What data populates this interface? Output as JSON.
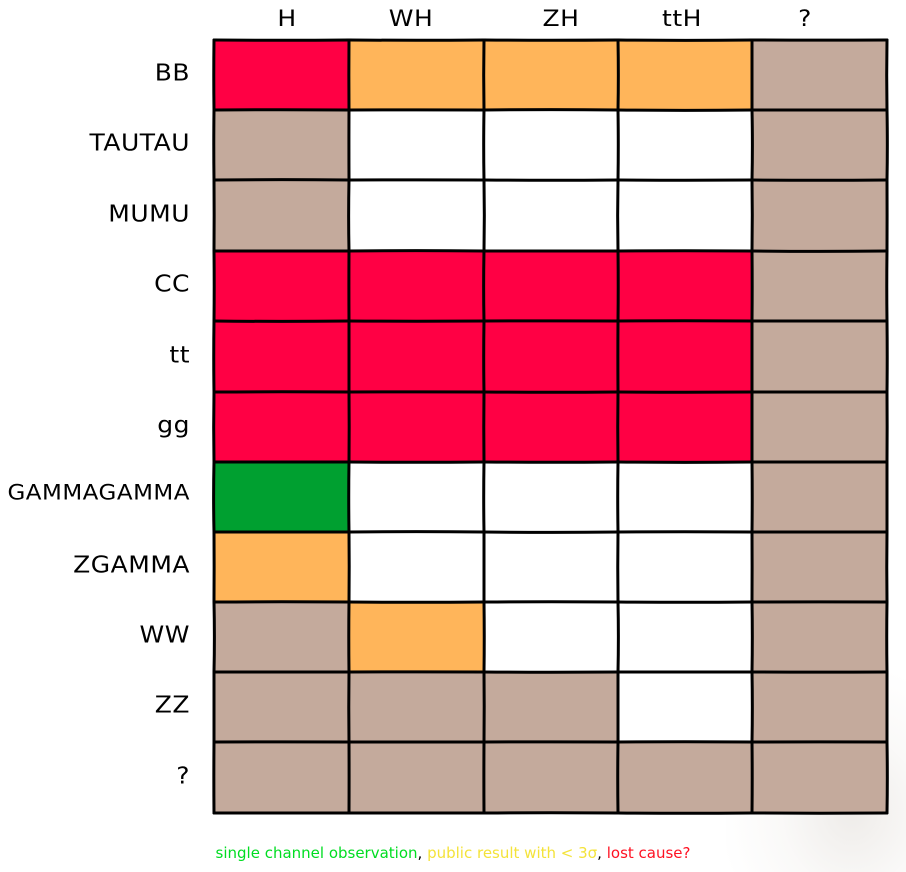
{
  "chart_data": {
    "type": "heatmap",
    "columns": [
      "H",
      "WH",
      "ZH",
      "ttH",
      "?"
    ],
    "rows": [
      "BB",
      "TAUTAU",
      "MUMU",
      "CC",
      "tt",
      "gg",
      "GAMMAGAMMA",
      "ZGAMMA",
      "WW",
      "ZZ",
      "?"
    ],
    "cells": [
      [
        "lost",
        "public",
        "public",
        "public",
        "unknown"
      ],
      [
        "unknown",
        "none",
        "none",
        "none",
        "unknown"
      ],
      [
        "unknown",
        "none",
        "none",
        "none",
        "unknown"
      ],
      [
        "lost",
        "lost",
        "lost",
        "lost",
        "unknown"
      ],
      [
        "lost",
        "lost",
        "lost",
        "lost",
        "unknown"
      ],
      [
        "lost",
        "lost",
        "lost",
        "lost",
        "unknown"
      ],
      [
        "observed",
        "none",
        "none",
        "none",
        "unknown"
      ],
      [
        "public",
        "none",
        "none",
        "none",
        "unknown"
      ],
      [
        "unknown",
        "public",
        "none",
        "none",
        "unknown"
      ],
      [
        "unknown",
        "unknown",
        "unknown",
        "none",
        "unknown"
      ],
      [
        "unknown",
        "unknown",
        "unknown",
        "unknown",
        "unknown"
      ]
    ],
    "colors": {
      "observed": "#00a030",
      "public": "#ffb55a",
      "lost": "#ff0044",
      "unknown": "#c4aa9c",
      "none": "#ffffff"
    },
    "legend": [
      {
        "text": "single channel observation",
        "color": "#00dd22"
      },
      {
        "text": ", ",
        "color": "#000000"
      },
      {
        "text": "public result with < 3σ",
        "color": "#f4e33a"
      },
      {
        "text": ", ",
        "color": "#000000"
      },
      {
        "text": "lost cause?",
        "color": "#ff1122"
      }
    ]
  }
}
